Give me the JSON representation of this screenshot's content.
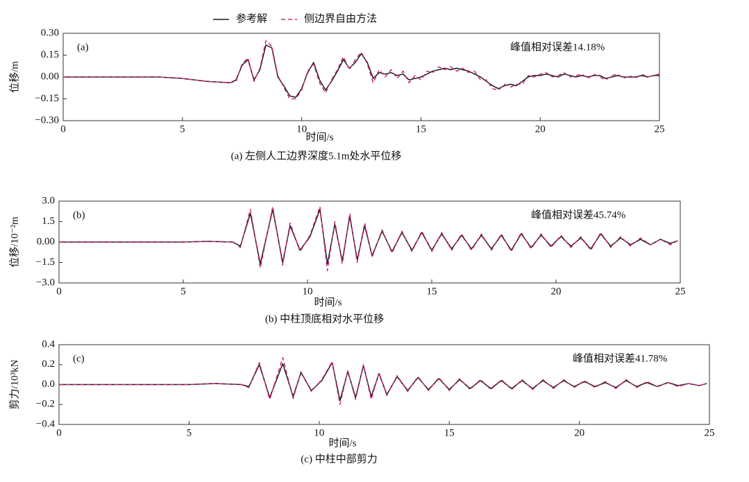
{
  "chart_data": [
    {
      "type": "line",
      "panel_label": "(a)",
      "annotation": "峰值相对误差14.18%",
      "title": "(a)  左侧人工边界深度5.1m处水平位移",
      "xlabel": "时间/s",
      "ylabel": "位移/m",
      "xlim": [
        0,
        25
      ],
      "xticks": [
        0,
        5,
        10,
        15,
        20,
        25
      ],
      "ylim": [
        -0.3,
        0.3
      ],
      "yticks": [
        {
          "value": -0.3,
          "label": "−0.30"
        },
        {
          "value": -0.15,
          "label": "−0.15"
        },
        {
          "value": 0,
          "label": "0.00"
        },
        {
          "value": 0.15,
          "label": "0.15"
        },
        {
          "value": 0.3,
          "label": "0.30"
        }
      ],
      "x": [
        0,
        1,
        2,
        3,
        4,
        5,
        6,
        7,
        7.25,
        7.5,
        7.75,
        8,
        8.25,
        8.5,
        8.75,
        9,
        9.25,
        9.5,
        9.75,
        10,
        10.25,
        10.5,
        10.75,
        11,
        11.25,
        11.5,
        11.75,
        12,
        12.25,
        12.5,
        12.75,
        13,
        13.25,
        13.5,
        13.75,
        14,
        14.25,
        14.5,
        14.75,
        15,
        15.25,
        15.5,
        15.75,
        16,
        16.25,
        16.5,
        16.75,
        17,
        17.25,
        17.5,
        17.75,
        18,
        18.25,
        18.5,
        18.75,
        19,
        19.25,
        19.5,
        19.75,
        20,
        20.25,
        20.5,
        20.75,
        21,
        21.25,
        21.5,
        21.75,
        22,
        22.25,
        22.5,
        22.75,
        23,
        23.25,
        23.5,
        23.75,
        24,
        24.25,
        24.5,
        24.75,
        25
      ],
      "series": [
        {
          "name": "参考解",
          "color": "#1a1a1a",
          "dash": false,
          "values": [
            0,
            0,
            0,
            0,
            0,
            -0.01,
            -0.03,
            -0.04,
            -0.02,
            0.08,
            0.12,
            -0.02,
            0.05,
            0.22,
            0.2,
            0.0,
            -0.06,
            -0.13,
            -0.14,
            -0.08,
            0.03,
            0.1,
            -0.02,
            -0.09,
            -0.03,
            0.04,
            0.12,
            0.06,
            0.1,
            0.16,
            0.1,
            -0.01,
            0.03,
            0.02,
            0.03,
            0.01,
            0.02,
            -0.02,
            -0.01,
            0.0,
            0.02,
            0.04,
            0.05,
            0.06,
            0.05,
            0.06,
            0.05,
            0.04,
            0.02,
            0.0,
            -0.03,
            -0.06,
            -0.08,
            -0.06,
            -0.05,
            -0.06,
            -0.03,
            0.0,
            0.01,
            0.01,
            0.02,
            0.01,
            0.0,
            0.02,
            0.01,
            0.0,
            0.01,
            0.0,
            0.01,
            0.01,
            -0.01,
            0.0,
            0.01,
            0.0,
            0.0,
            0.0,
            0.01,
            0.0,
            0.01,
            0.01
          ]
        },
        {
          "name": "侧边界自由方法",
          "color": "#c8287a",
          "dash": true,
          "values": [
            0,
            0,
            0,
            0,
            0,
            -0.01,
            -0.03,
            -0.04,
            -0.03,
            0.09,
            0.13,
            -0.03,
            0.06,
            0.25,
            0.21,
            0.01,
            -0.07,
            -0.15,
            -0.15,
            -0.09,
            0.04,
            0.09,
            -0.04,
            -0.11,
            -0.02,
            0.05,
            0.14,
            0.05,
            0.12,
            0.17,
            0.09,
            -0.04,
            0.05,
            0.0,
            0.05,
            -0.01,
            0.04,
            -0.04,
            0.01,
            -0.02,
            0.04,
            0.03,
            0.07,
            0.05,
            0.07,
            0.04,
            0.06,
            0.03,
            0.04,
            -0.02,
            -0.02,
            -0.08,
            -0.09,
            -0.05,
            -0.07,
            -0.05,
            -0.05,
            0.01,
            0.0,
            0.02,
            0.03,
            0.0,
            0.01,
            0.03,
            0.0,
            0.01,
            0.02,
            -0.01,
            0.02,
            0.0,
            -0.02,
            0.01,
            0.02,
            -0.01,
            0.01,
            -0.01,
            0.02,
            0.0,
            0.01,
            0.02
          ]
        }
      ]
    },
    {
      "type": "line",
      "panel_label": "(b)",
      "annotation": "峰值相对误差45.74%",
      "title": "(b)  中柱顶底相对水平位移",
      "xlabel": "时间/s",
      "ylabel": "位移/10⁻²m",
      "xlim": [
        0,
        25
      ],
      "xticks": [
        0,
        5,
        10,
        15,
        20,
        25
      ],
      "ylim": [
        -3,
        3
      ],
      "yticks": [
        {
          "value": -3,
          "label": "−3.0"
        },
        {
          "value": -1.5,
          "label": "−1.5"
        },
        {
          "value": 0,
          "label": "0.00"
        },
        {
          "value": 1.5,
          "label": "1.5"
        },
        {
          "value": 3,
          "label": "3.0"
        }
      ],
      "x": [
        0,
        2,
        4,
        5,
        6,
        7,
        7.3,
        7.7,
        8.1,
        8.6,
        9.0,
        9.3,
        9.7,
        10.1,
        10.5,
        10.8,
        11.1,
        11.4,
        11.7,
        12.0,
        12.3,
        12.6,
        13.0,
        13.4,
        13.8,
        14.2,
        14.6,
        15.0,
        15.4,
        15.8,
        16.2,
        16.6,
        17.0,
        17.4,
        17.8,
        18.2,
        18.6,
        19.0,
        19.4,
        19.8,
        20.2,
        20.6,
        21.0,
        21.4,
        21.8,
        22.2,
        22.6,
        23.0,
        23.4,
        23.8,
        24.2,
        24.6,
        24.9
      ],
      "series": [
        {
          "color": "#1a1a1a",
          "dash": false,
          "values": [
            0,
            0,
            0,
            0,
            0.05,
            0,
            -0.3,
            2.1,
            -1.6,
            2.4,
            -1.5,
            1.2,
            -0.6,
            0.4,
            2.4,
            -1.6,
            1.3,
            -1.4,
            1.9,
            -1.3,
            1.2,
            -1.0,
            0.8,
            -0.7,
            0.7,
            -0.6,
            0.7,
            -0.6,
            0.6,
            -0.5,
            0.5,
            -0.5,
            0.5,
            -0.5,
            0.5,
            -0.6,
            0.6,
            -0.4,
            0.5,
            -0.3,
            0.4,
            -0.3,
            0.3,
            -0.5,
            0.6,
            -0.3,
            0.3,
            -0.2,
            0.2,
            -0.2,
            0.2,
            -0.1,
            0.1
          ]
        },
        {
          "color": "#c8287a",
          "dash": true,
          "values": [
            0,
            0,
            0,
            0,
            0.05,
            0,
            -0.4,
            2.4,
            -1.9,
            2.6,
            -1.7,
            1.4,
            -0.7,
            0.5,
            2.6,
            -2.1,
            1.5,
            -1.6,
            2.1,
            -1.5,
            1.4,
            -1.1,
            0.9,
            -0.8,
            0.8,
            -0.7,
            0.8,
            -0.7,
            0.7,
            -0.6,
            0.6,
            -0.6,
            0.6,
            -0.6,
            0.6,
            -0.7,
            0.7,
            -0.5,
            0.6,
            -0.4,
            0.5,
            -0.4,
            0.4,
            -0.6,
            0.7,
            -0.4,
            0.4,
            -0.3,
            0.3,
            -0.2,
            0.2,
            -0.2,
            0.1
          ]
        }
      ]
    },
    {
      "type": "line",
      "panel_label": "(c)",
      "annotation": "峰值相对误差41.78%",
      "title": "(c)  中柱中部剪力",
      "xlabel": "时间/s",
      "ylabel": "剪力/10³kN",
      "xlim": [
        0,
        25
      ],
      "xticks": [
        0,
        5,
        10,
        15,
        20,
        25
      ],
      "ylim": [
        -0.4,
        0.4
      ],
      "yticks": [
        {
          "value": -0.4,
          "label": "−0.4"
        },
        {
          "value": -0.2,
          "label": "−0.2"
        },
        {
          "value": 0,
          "label": "0.0"
        },
        {
          "value": 0.2,
          "label": "0.2"
        },
        {
          "value": 0.4,
          "label": "0.4"
        }
      ],
      "x": [
        0,
        2,
        4,
        5,
        6,
        7,
        7.3,
        7.7,
        8.1,
        8.6,
        9.0,
        9.3,
        9.7,
        10.1,
        10.5,
        10.8,
        11.1,
        11.4,
        11.7,
        12.0,
        12.3,
        12.6,
        13.0,
        13.4,
        13.8,
        14.2,
        14.6,
        15.0,
        15.4,
        15.8,
        16.2,
        16.6,
        17.0,
        17.4,
        17.8,
        18.2,
        18.6,
        19.0,
        19.4,
        19.8,
        20.2,
        20.6,
        21.0,
        21.4,
        21.8,
        22.2,
        22.6,
        23.0,
        23.4,
        23.8,
        24.2,
        24.6,
        24.9
      ],
      "series": [
        {
          "color": "#1a1a1a",
          "dash": false,
          "values": [
            0,
            0,
            0,
            0,
            0.01,
            0,
            -0.02,
            0.2,
            -0.13,
            0.21,
            -0.12,
            0.12,
            -0.06,
            0.04,
            0.22,
            -0.16,
            0.13,
            -0.13,
            0.19,
            -0.12,
            0.11,
            -0.1,
            0.08,
            -0.06,
            0.07,
            -0.05,
            0.06,
            -0.05,
            0.05,
            -0.04,
            0.04,
            -0.04,
            0.04,
            -0.04,
            0.04,
            -0.04,
            0.04,
            -0.03,
            0.04,
            -0.02,
            0.03,
            -0.02,
            0.02,
            -0.03,
            0.04,
            -0.02,
            0.02,
            -0.02,
            0.02,
            -0.01,
            0.01,
            -0.01,
            0.01
          ]
        },
        {
          "color": "#c8287a",
          "dash": true,
          "values": [
            0,
            0,
            0,
            0,
            0.01,
            0,
            -0.03,
            0.22,
            -0.15,
            0.27,
            -0.14,
            0.13,
            -0.07,
            0.05,
            0.23,
            -0.2,
            0.14,
            -0.15,
            0.2,
            -0.15,
            0.12,
            -0.11,
            0.09,
            -0.07,
            0.08,
            -0.06,
            0.07,
            -0.06,
            0.06,
            -0.05,
            0.05,
            -0.05,
            0.05,
            -0.05,
            0.05,
            -0.05,
            0.05,
            -0.04,
            0.05,
            -0.03,
            0.04,
            -0.03,
            0.03,
            -0.04,
            0.05,
            -0.03,
            0.03,
            -0.02,
            0.02,
            -0.02,
            0.01,
            -0.01,
            0.01
          ]
        }
      ]
    }
  ]
}
